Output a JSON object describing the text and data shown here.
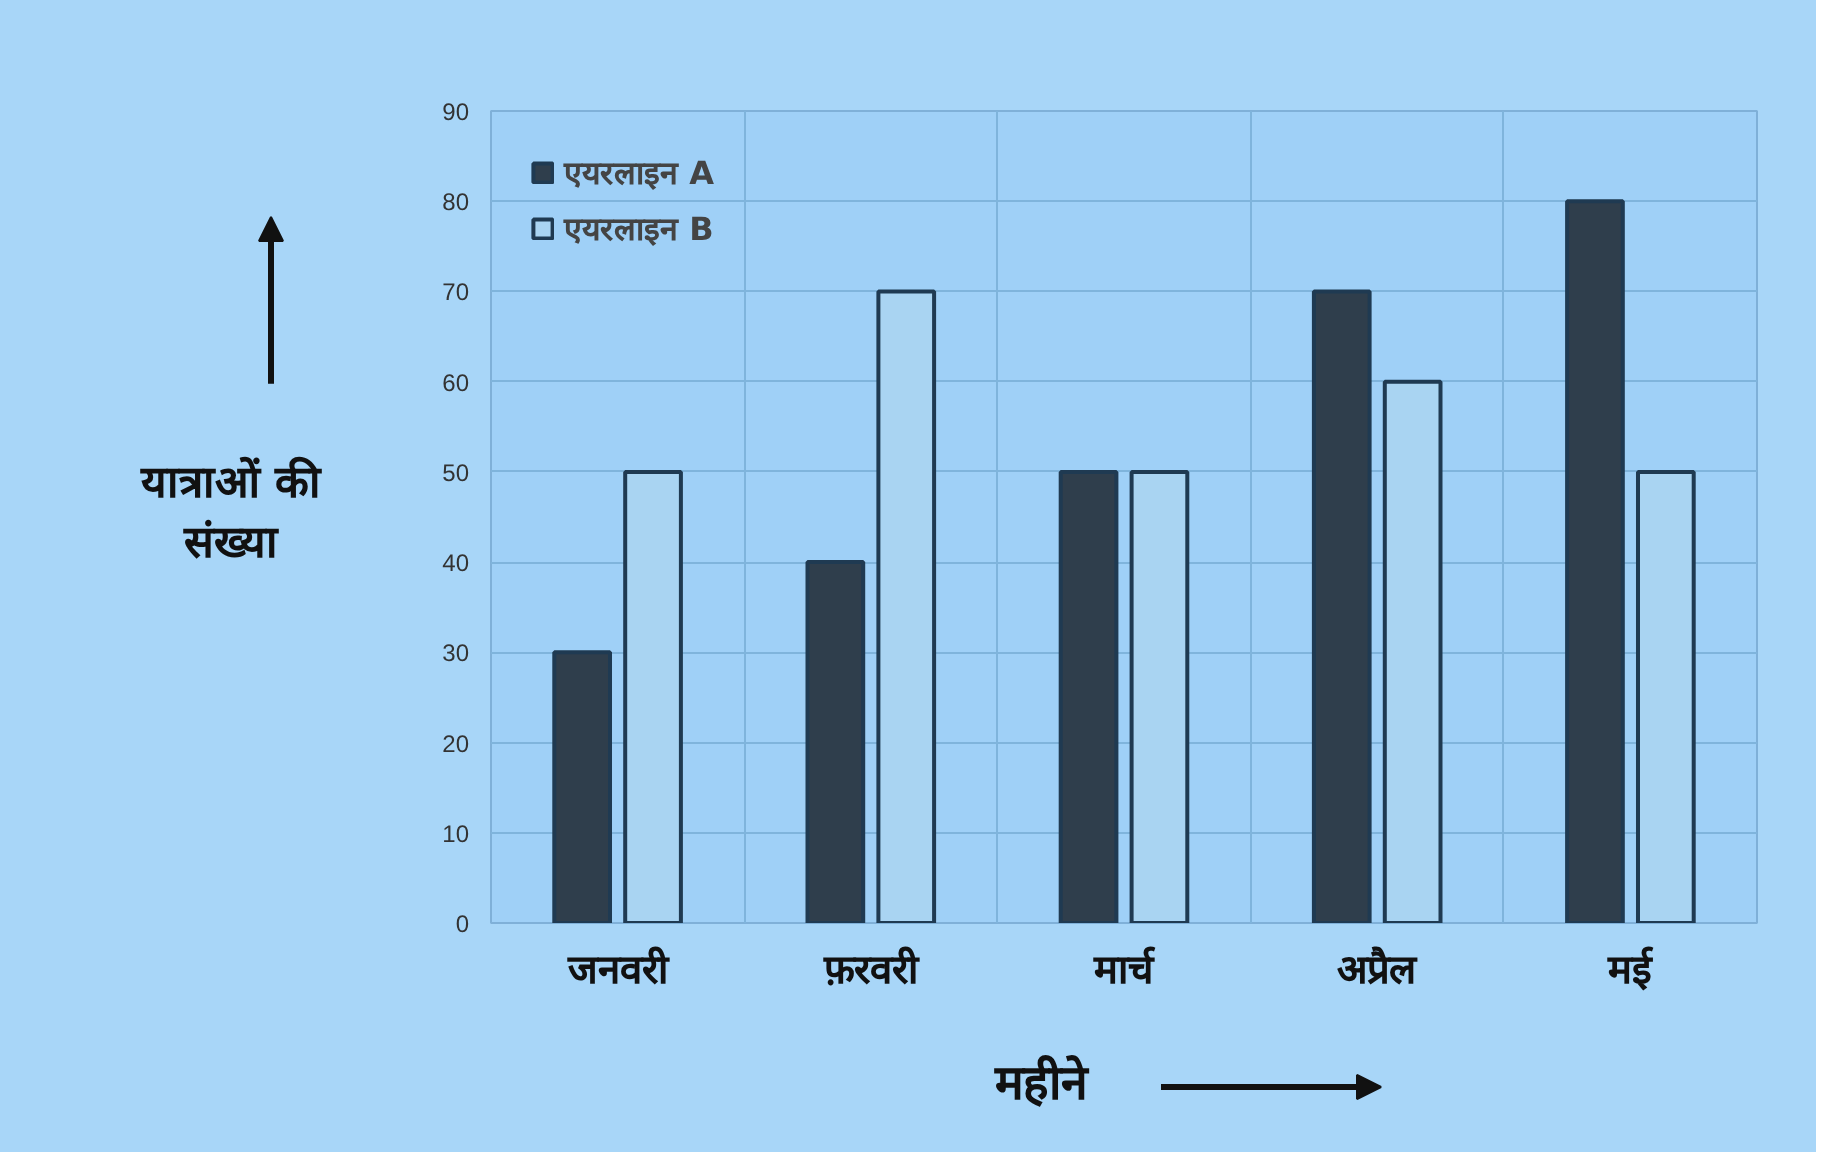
{
  "chart_data": {
    "type": "bar",
    "xlabel": "महीने",
    "ylabel": "यात्राओं की संख्या",
    "categories": [
      "जनवरी",
      "फ़रवरी",
      "मार्च",
      "अप्रैल",
      "मई"
    ],
    "series": [
      {
        "name": "एयरलाइन A",
        "color": "#2f3e4c",
        "values": [
          30,
          40,
          50,
          70,
          80
        ]
      },
      {
        "name": "एयरलाइन B",
        "color": "#a9d4f2",
        "values": [
          50,
          70,
          50,
          60,
          50
        ]
      }
    ],
    "ylim": [
      0,
      90
    ],
    "yticks": [
      0,
      10,
      20,
      30,
      40,
      50,
      60,
      70,
      80,
      90
    ],
    "grid": true,
    "legend": "top left"
  }
}
